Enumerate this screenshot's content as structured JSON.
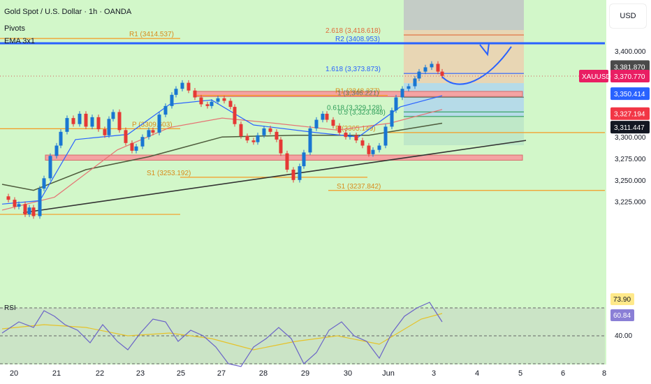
{
  "header": {
    "title": "Gold Spot / U.S. Dollar · 1h · OANDA",
    "indicator_1": "Pivots",
    "indicator_2": "EMA 3x1"
  },
  "currency_button": "USD",
  "colors": {
    "background": "#d2f7c9",
    "up_candle": "#1976d2",
    "down_candle": "#e53935",
    "ema_fast": "#2962ff",
    "ema_mid": "#e57373",
    "ema_slow": "#4e5b3c",
    "pivot_line": "#f59a23",
    "fib_line": "#2962ff",
    "zone": "#f4a3a3",
    "rsi_line": "#6a63c8",
    "rsi_ma": "#e6c229"
  },
  "chart_data": {
    "type": "line",
    "symbol": "XAUUSD",
    "timeframe": "1h",
    "y_ticks": [
      3225,
      3250,
      3275,
      3300,
      3325,
      3350,
      3375,
      3400
    ],
    "y_tick_labels": [
      "3,225.000",
      "3,250.000",
      "3,275.000",
      "3,300.000",
      "3,325.000",
      "3,350.000",
      "3,375.000",
      "3,400.000"
    ],
    "ylim": [
      3190,
      3452
    ],
    "x_tick_labels": [
      "20",
      "21",
      "22",
      "23",
      "25",
      "27",
      "28",
      "29",
      "30",
      "Jun",
      "3",
      "4",
      "5",
      "6",
      "8"
    ],
    "price_path": [
      [
        0,
        3231
      ],
      [
        3,
        3227
      ],
      [
        6,
        3219
      ],
      [
        8,
        3222
      ],
      [
        11,
        3210
      ],
      [
        13,
        3218
      ],
      [
        15,
        3208
      ],
      [
        18,
        3240
      ],
      [
        20,
        3252
      ],
      [
        23,
        3278
      ],
      [
        26,
        3290
      ],
      [
        28,
        3306
      ],
      [
        31,
        3322
      ],
      [
        34,
        3315
      ],
      [
        37,
        3327
      ],
      [
        40,
        3312
      ],
      [
        43,
        3323
      ],
      [
        46,
        3309
      ],
      [
        49,
        3302
      ],
      [
        51,
        3321
      ],
      [
        53,
        3329
      ],
      [
        56,
        3308
      ],
      [
        59,
        3293
      ],
      [
        62,
        3284
      ],
      [
        64,
        3289
      ],
      [
        67,
        3300
      ],
      [
        70,
        3308
      ],
      [
        72,
        3305
      ],
      [
        75,
        3326
      ],
      [
        78,
        3336
      ],
      [
        81,
        3349
      ],
      [
        83,
        3356
      ],
      [
        86,
        3363
      ],
      [
        89,
        3354
      ],
      [
        92,
        3346
      ],
      [
        95,
        3338
      ],
      [
        98,
        3336
      ],
      [
        100,
        3341
      ],
      [
        103,
        3345
      ],
      [
        106,
        3342
      ],
      [
        109,
        3335
      ],
      [
        111,
        3315
      ],
      [
        114,
        3301
      ],
      [
        117,
        3296
      ],
      [
        120,
        3294
      ],
      [
        122,
        3302
      ],
      [
        125,
        3310
      ],
      [
        128,
        3306
      ],
      [
        131,
        3297
      ],
      [
        133,
        3281
      ],
      [
        136,
        3262
      ],
      [
        139,
        3250
      ],
      [
        142,
        3266
      ],
      [
        144,
        3282
      ],
      [
        147,
        3310
      ],
      [
        150,
        3320
      ],
      [
        153,
        3327
      ],
      [
        155,
        3320
      ],
      [
        158,
        3313
      ],
      [
        161,
        3305
      ],
      [
        164,
        3300
      ],
      [
        166,
        3302
      ],
      [
        169,
        3296
      ],
      [
        172,
        3290
      ],
      [
        175,
        3280
      ],
      [
        177,
        3285
      ],
      [
        180,
        3290
      ],
      [
        183,
        3312
      ],
      [
        186,
        3331
      ],
      [
        188,
        3346
      ],
      [
        191,
        3356
      ],
      [
        194,
        3359
      ],
      [
        197,
        3368
      ],
      [
        199,
        3376
      ],
      [
        202,
        3381
      ],
      [
        205,
        3385
      ],
      [
        208,
        3376
      ],
      [
        210,
        3371
      ]
    ],
    "ema_fast": [
      [
        0,
        3222
      ],
      [
        18,
        3226
      ],
      [
        35,
        3297
      ],
      [
        60,
        3303
      ],
      [
        80,
        3338
      ],
      [
        100,
        3343
      ],
      [
        120,
        3314
      ],
      [
        150,
        3305
      ],
      [
        170,
        3300
      ],
      [
        190,
        3335
      ],
      [
        210,
        3348
      ]
    ],
    "ema_mid": [
      [
        0,
        3215
      ],
      [
        25,
        3230
      ],
      [
        55,
        3285
      ],
      [
        80,
        3311
      ],
      [
        105,
        3322
      ],
      [
        130,
        3316
      ],
      [
        160,
        3308
      ],
      [
        185,
        3316
      ],
      [
        210,
        3332
      ]
    ],
    "ema_slow": [
      [
        0,
        3245
      ],
      [
        15,
        3238
      ],
      [
        40,
        3262
      ],
      [
        70,
        3277
      ],
      [
        105,
        3300
      ],
      [
        140,
        3302
      ],
      [
        175,
        3302
      ],
      [
        195,
        3310
      ],
      [
        210,
        3316
      ]
    ],
    "trendline": [
      [
        10,
        3212
      ],
      [
        250,
        3296
      ]
    ],
    "levels": [
      {
        "label": "R1 (3414.537)",
        "value": 3414.537
      },
      {
        "label": "P (3309.603)",
        "value": 3309.603
      },
      {
        "label": "S1 (3253.192)",
        "value": 3253.192
      },
      {
        "label": "R1 (3348.377)",
        "value": 3348.377
      },
      {
        "label": "P (3305.149)",
        "value": 3305.149
      },
      {
        "label": "S1 (3237.842)",
        "value": 3237.842
      },
      {
        "label": "2.618 (3,418.618)",
        "value": 3418.618
      },
      {
        "label": "R2 (3408.953)",
        "value": 3408.953
      },
      {
        "label": "1.618 (3,373.873)",
        "value": 3373.873
      },
      {
        "label": "1 (3,346.221)",
        "value": 3346.221
      },
      {
        "label": "0.618 (3,329.128)",
        "value": 3329.128
      },
      {
        "label": "0.5 (3,323.848)",
        "value": 3323.848
      }
    ],
    "zones": [
      {
        "low": 3347,
        "high": 3353
      },
      {
        "low": 3273,
        "high": 3279
      }
    ],
    "projection": [
      [
        210,
        3370
      ],
      [
        218,
        3350
      ],
      [
        232,
        3366
      ],
      [
        243,
        3405
      ]
    ],
    "price_labels": [
      {
        "label": "3,381.870",
        "value": 3381.87
      },
      {
        "label": "3,370.770",
        "value": 3370.77
      },
      {
        "label": "3,350.414",
        "value": 3350.414
      },
      {
        "label": "3,327.194",
        "value": 3327.194
      },
      {
        "label": "3,311.447",
        "value": 3311.447
      }
    ],
    "symbol_tag": "XAUUSD",
    "rsi": {
      "title": "RSI",
      "levels": [
        70,
        50,
        30
      ],
      "ylim": [
        20,
        90
      ],
      "tick_labels": [
        "40.00"
      ],
      "values": [
        [
          0,
          52
        ],
        [
          8,
          60
        ],
        [
          15,
          56
        ],
        [
          20,
          68
        ],
        [
          25,
          64
        ],
        [
          30,
          58
        ],
        [
          36,
          54
        ],
        [
          42,
          45
        ],
        [
          48,
          58
        ],
        [
          55,
          46
        ],
        [
          60,
          40
        ],
        [
          66,
          52
        ],
        [
          72,
          62
        ],
        [
          78,
          60
        ],
        [
          84,
          46
        ],
        [
          90,
          54
        ],
        [
          96,
          50
        ],
        [
          102,
          42
        ],
        [
          108,
          30
        ],
        [
          114,
          28
        ],
        [
          120,
          42
        ],
        [
          126,
          48
        ],
        [
          132,
          56
        ],
        [
          138,
          48
        ],
        [
          144,
          30
        ],
        [
          150,
          38
        ],
        [
          156,
          54
        ],
        [
          162,
          60
        ],
        [
          168,
          50
        ],
        [
          174,
          46
        ],
        [
          180,
          34
        ],
        [
          186,
          52
        ],
        [
          192,
          64
        ],
        [
          198,
          70
        ],
        [
          204,
          74
        ],
        [
          210,
          60
        ]
      ],
      "ma_values": [
        [
          0,
          55
        ],
        [
          20,
          58
        ],
        [
          40,
          56
        ],
        [
          60,
          50
        ],
        [
          80,
          52
        ],
        [
          100,
          48
        ],
        [
          120,
          40
        ],
        [
          140,
          46
        ],
        [
          160,
          50
        ],
        [
          180,
          44
        ],
        [
          200,
          62
        ],
        [
          210,
          66
        ]
      ],
      "value_labels": [
        "73.90",
        "60.84"
      ]
    }
  }
}
